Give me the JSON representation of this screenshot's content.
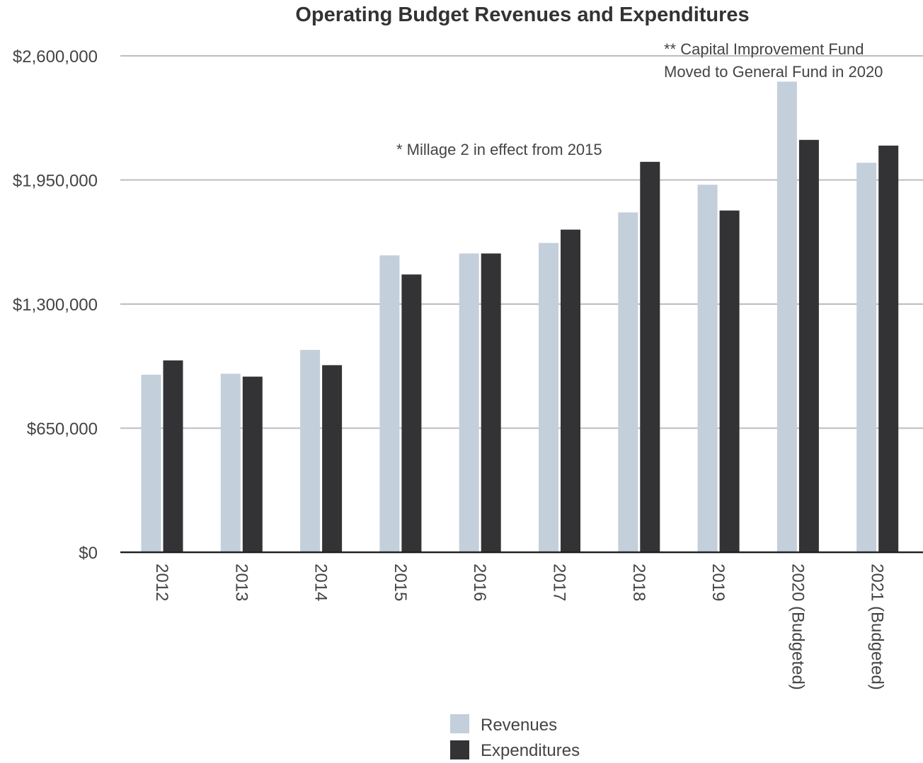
{
  "chart_data": {
    "type": "bar",
    "title": "Operating Budget Revenues and Expenditures",
    "xlabel": "",
    "ylabel": "",
    "categories": [
      "2012",
      "2013",
      "2014",
      "2015",
      "2016",
      "2017",
      "2018",
      "2019",
      "2020 (Budgeted)",
      "2021 (Budgeted)"
    ],
    "series": [
      {
        "name": "Revenues",
        "color": "#c3cfdb",
        "values": [
          930000,
          935000,
          1060000,
          1555000,
          1565000,
          1620000,
          1780000,
          1925000,
          2465000,
          2040000
        ]
      },
      {
        "name": "Expenditures",
        "color": "#333335",
        "values": [
          1005000,
          920000,
          980000,
          1455000,
          1565000,
          1690000,
          2045000,
          1790000,
          2160000,
          2130000
        ]
      }
    ],
    "ylim": [
      0,
      2600000
    ],
    "yticks": [
      0,
      650000,
      1300000,
      1950000,
      2600000
    ],
    "ytick_labels": [
      "$0",
      "$650,000",
      "$1,300,000",
      "$1,950,000",
      "$2,600,000"
    ],
    "grid": true,
    "legend_position": "bottom-center",
    "annotations": [
      {
        "lines": [
          "* Millage 2 in effect from 2015"
        ]
      },
      {
        "lines": [
          "** Capital Improvement Fund",
          "Moved to General Fund in 2020"
        ]
      }
    ]
  }
}
